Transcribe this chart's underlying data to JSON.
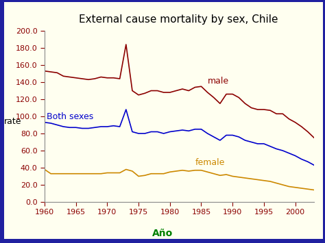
{
  "title": "External cause mortality by sex, Chile",
  "xlabel": "Año",
  "ylabel": "rate",
  "background_color": "#fffff0",
  "outer_background": "#2020a0",
  "inner_background": "#fffff0",
  "xlim": [
    1960,
    2003
  ],
  "ylim": [
    0,
    200
  ],
  "yticks": [
    0,
    20,
    40,
    60,
    80,
    100,
    120,
    140,
    160,
    180,
    200
  ],
  "xticks": [
    1960,
    1965,
    1970,
    1975,
    1980,
    1985,
    1990,
    1995,
    2000
  ],
  "years": [
    1960,
    1961,
    1962,
    1963,
    1964,
    1965,
    1966,
    1967,
    1968,
    1969,
    1970,
    1971,
    1972,
    1973,
    1974,
    1975,
    1976,
    1977,
    1978,
    1979,
    1980,
    1981,
    1982,
    1983,
    1984,
    1985,
    1986,
    1987,
    1988,
    1989,
    1990,
    1991,
    1992,
    1993,
    1994,
    1995,
    1996,
    1997,
    1998,
    1999,
    2000,
    2001,
    2002,
    2003
  ],
  "male": [
    153,
    152,
    151,
    147,
    146,
    145,
    144,
    143,
    144,
    146,
    145,
    145,
    144,
    184,
    130,
    125,
    127,
    130,
    130,
    128,
    128,
    130,
    132,
    130,
    134,
    135,
    128,
    122,
    115,
    126,
    126,
    122,
    115,
    110,
    108,
    108,
    107,
    103,
    103,
    97,
    93,
    88,
    82,
    75
  ],
  "both_sexes": [
    93,
    92,
    90,
    88,
    87,
    87,
    86,
    86,
    87,
    88,
    88,
    89,
    88,
    108,
    82,
    80,
    80,
    82,
    82,
    80,
    82,
    83,
    84,
    83,
    85,
    85,
    80,
    76,
    72,
    78,
    78,
    76,
    72,
    70,
    68,
    68,
    65,
    62,
    60,
    57,
    54,
    50,
    47,
    43
  ],
  "female": [
    38,
    33,
    33,
    33,
    33,
    33,
    33,
    33,
    33,
    33,
    34,
    34,
    34,
    38,
    36,
    30,
    31,
    33,
    33,
    33,
    35,
    36,
    37,
    36,
    37,
    37,
    35,
    33,
    31,
    32,
    30,
    29,
    28,
    27,
    26,
    25,
    24,
    22,
    20,
    18,
    17,
    16,
    15,
    14
  ],
  "male_color": "#8b0000",
  "both_sexes_color": "#0000cc",
  "female_color": "#cc8800",
  "male_label": "male",
  "both_sexes_label": "Both sexes",
  "female_label": "female",
  "title_fontsize": 11,
  "axis_label_fontsize": 9,
  "tick_fontsize": 8,
  "annotation_fontsize": 9,
  "xlabel_color": "#008000",
  "tick_color": "#8b0000",
  "border_width": 6
}
